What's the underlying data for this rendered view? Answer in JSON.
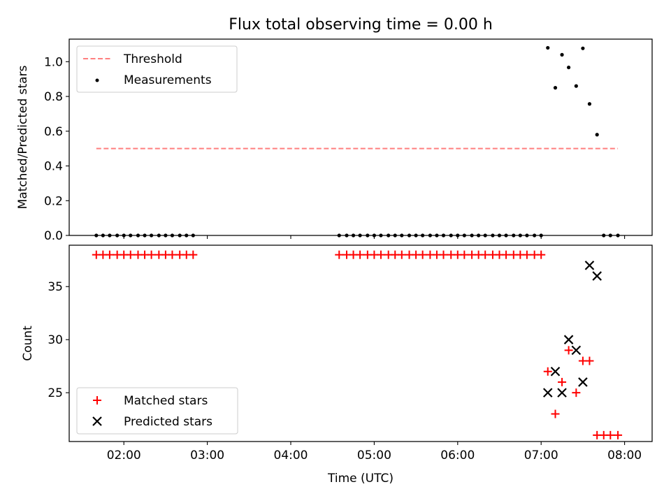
{
  "title": "Flux total observing time = 0.00 h",
  "colors": {
    "threshold": "#ff7f7f",
    "measurements": "#000000",
    "matched": "#ff0000",
    "predicted": "#000000"
  },
  "chart_data": [
    {
      "type": "scatter",
      "ylabel": "Matched/Predicted stars",
      "xlim": [
        1.345,
        8.33
      ],
      "ylim": [
        0,
        1.13
      ],
      "yticks": [
        0.0,
        0.2,
        0.4,
        0.6,
        0.8,
        1.0
      ],
      "ytick_labels": [
        "0.0",
        "0.2",
        "0.4",
        "0.6",
        "0.8",
        "1.0"
      ],
      "legend": {
        "position": "top-left",
        "entries": [
          "Threshold",
          "Measurements"
        ]
      },
      "threshold": {
        "name": "Threshold",
        "y": 0.5,
        "x_range": [
          1.67,
          7.92
        ],
        "style": "dashed"
      },
      "series": [
        {
          "name": "Measurements",
          "marker": "dot",
          "x": [
            1.67,
            1.75,
            1.83,
            1.92,
            2.0,
            2.08,
            2.17,
            2.25,
            2.33,
            2.42,
            2.5,
            2.58,
            2.67,
            2.75,
            2.83,
            4.58,
            4.67,
            4.75,
            4.83,
            4.92,
            5.0,
            5.08,
            5.17,
            5.25,
            5.33,
            5.42,
            5.5,
            5.58,
            5.67,
            5.75,
            5.83,
            5.92,
            6.0,
            6.08,
            6.17,
            6.25,
            6.33,
            6.42,
            6.5,
            6.58,
            6.67,
            6.75,
            6.83,
            6.92,
            7.0,
            7.08,
            7.17,
            7.25,
            7.33,
            7.42,
            7.5,
            7.58,
            7.67,
            7.75,
            7.83,
            7.92
          ],
          "y": [
            0,
            0,
            0,
            0,
            0,
            0,
            0,
            0,
            0,
            0,
            0,
            0,
            0,
            0,
            0,
            0,
            0,
            0,
            0,
            0,
            0,
            0,
            0,
            0,
            0,
            0,
            0,
            0,
            0,
            0,
            0,
            0,
            0,
            0,
            0,
            0,
            0,
            0,
            0,
            0,
            0,
            0,
            0,
            0,
            0,
            1.08,
            0.85,
            1.04,
            0.967,
            0.86,
            1.077,
            0.757,
            0.58,
            0,
            0,
            0
          ]
        }
      ]
    },
    {
      "type": "scatter",
      "xlabel": "Time (UTC)",
      "ylabel": "Count",
      "xlim": [
        1.345,
        8.33
      ],
      "ylim": [
        20.4,
        38.9
      ],
      "xticks": [
        2,
        3,
        4,
        5,
        6,
        7,
        8
      ],
      "xtick_labels": [
        "02:00",
        "03:00",
        "04:00",
        "05:00",
        "06:00",
        "07:00",
        "08:00"
      ],
      "yticks": [
        25,
        30,
        35
      ],
      "ytick_labels": [
        "25",
        "30",
        "35"
      ],
      "legend": {
        "position": "bottom-left",
        "entries": [
          "Matched stars",
          "Predicted stars"
        ]
      },
      "series": [
        {
          "name": "Matched stars",
          "marker": "plus",
          "x": [
            1.67,
            1.75,
            1.83,
            1.92,
            2.0,
            2.08,
            2.17,
            2.25,
            2.33,
            2.42,
            2.5,
            2.58,
            2.67,
            2.75,
            2.83,
            4.58,
            4.67,
            4.75,
            4.83,
            4.92,
            5.0,
            5.08,
            5.17,
            5.25,
            5.33,
            5.42,
            5.5,
            5.58,
            5.67,
            5.75,
            5.83,
            5.92,
            6.0,
            6.08,
            6.17,
            6.25,
            6.33,
            6.42,
            6.5,
            6.58,
            6.67,
            6.75,
            6.83,
            6.92,
            7.0,
            7.08,
            7.17,
            7.25,
            7.33,
            7.42,
            7.5,
            7.58,
            7.67,
            7.75,
            7.83,
            7.92
          ],
          "y": [
            38,
            38,
            38,
            38,
            38,
            38,
            38,
            38,
            38,
            38,
            38,
            38,
            38,
            38,
            38,
            38,
            38,
            38,
            38,
            38,
            38,
            38,
            38,
            38,
            38,
            38,
            38,
            38,
            38,
            38,
            38,
            38,
            38,
            38,
            38,
            38,
            38,
            38,
            38,
            38,
            38,
            38,
            38,
            38,
            38,
            27,
            23,
            26,
            29,
            25,
            28,
            28,
            21,
            21,
            21,
            21
          ]
        },
        {
          "name": "Predicted stars",
          "marker": "x",
          "x": [
            7.08,
            7.17,
            7.25,
            7.33,
            7.42,
            7.5,
            7.58,
            7.67
          ],
          "y": [
            25,
            27,
            25,
            30,
            29,
            26,
            37,
            36
          ]
        }
      ]
    }
  ]
}
